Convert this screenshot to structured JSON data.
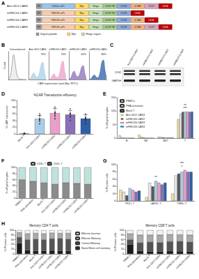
{
  "panels": {
    "A": {
      "panel": "A",
      "constructs": [
        {
          "name": "Anti-GD2-CAR4",
          "domains": [
            {
              "label": "SP",
              "color": "#9e9e9e"
            },
            {
              "label": "14G2a scFv",
              "color": "#9dc3e6"
            },
            {
              "label": "Myc",
              "color": "#ffd966"
            },
            {
              "label": "Hinge",
              "color": "#c5e0b4"
            },
            {
              "label": "CD28 TM",
              "color": "#a9d18e"
            },
            {
              "label": "CD28",
              "color": "#8faadc"
            },
            {
              "label": "4-1BB",
              "color": "#f4b183"
            },
            {
              "label": "CD27",
              "color": "#d5a6bd"
            },
            {
              "label": "CD3ζ",
              "color": "#c00000"
            }
          ]
        },
        {
          "name": "mFMC63-CAR2",
          "domains": [
            {
              "label": "SP",
              "color": "#9e9e9e"
            },
            {
              "label": "FMC63 scFv",
              "color": "#f8cbad"
            },
            {
              "label": "Myc",
              "color": "#ffd966"
            },
            {
              "label": "Hinge",
              "color": "#c5e0b4"
            },
            {
              "label": "CD28 TM",
              "color": "#a9d18e"
            },
            {
              "label": "CD28",
              "color": "#8faadc"
            },
            {
              "label": "CD3ζ",
              "color": "#c00000"
            }
          ]
        },
        {
          "name": "mFMC63-CAR3",
          "domains": [
            {
              "label": "SP",
              "color": "#9e9e9e"
            },
            {
              "label": "FMC63 scFv",
              "color": "#f8cbad"
            },
            {
              "label": "Myc",
              "color": "#ffd966"
            },
            {
              "label": "Hinge",
              "color": "#c5e0b4"
            },
            {
              "label": "CD28 TM",
              "color": "#a9d18e"
            },
            {
              "label": "CD28",
              "color": "#8faadc"
            },
            {
              "label": "4-1BB",
              "color": "#f4b183"
            },
            {
              "label": "CD3ζ",
              "color": "#c00000"
            }
          ]
        },
        {
          "name": "mFMC63-CAR4",
          "domains": [
            {
              "label": "SP",
              "color": "#9e9e9e"
            },
            {
              "label": "FMC63 scFv",
              "color": "#f8cbad"
            },
            {
              "label": "Myc",
              "color": "#ffd966"
            },
            {
              "label": "Hinge",
              "color": "#c5e0b4"
            },
            {
              "label": "CD28 TM",
              "color": "#a9d18e"
            },
            {
              "label": "CD28",
              "color": "#8faadc"
            },
            {
              "label": "4-1BB",
              "color": "#f4b183"
            },
            {
              "label": "CD27",
              "color": "#d5a6bd"
            },
            {
              "label": "CD3ζ",
              "color": "#c00000"
            }
          ]
        }
      ],
      "legend": [
        {
          "label": "Signal peptide",
          "color": "#9e9e9e"
        },
        {
          "label": "Myc",
          "color": "#ffd966"
        },
        {
          "label": "Hinge region",
          "color": "#c5e0b4"
        }
      ]
    },
    "C": {
      "panel": "C",
      "lanes": [
        "Anti-GD2-CAR4",
        "mFMC63-CAR2",
        "mFMC63-CAR3",
        "mFMC63-CAR4"
      ],
      "rows": [
        "CD3ζ",
        "GAPDH"
      ]
    }
  },
  "chart_data": [
    {
      "panel": "B",
      "type": "histogram",
      "xlabel": "CAR expression (anti-Myc FITC)",
      "ylabel": "Count",
      "tick_labels": false,
      "bins": [
        0,
        1,
        2,
        3,
        4,
        5,
        6,
        7,
        8,
        9,
        10,
        11,
        12
      ],
      "xlim": [
        0,
        12
      ],
      "ylim": [
        0,
        100
      ],
      "series": [
        {
          "name": "Untransduced",
          "color": "#8c8c8c",
          "values": [
            3,
            15,
            55,
            90,
            60,
            22,
            6,
            2,
            1,
            0,
            0,
            0
          ]
        },
        {
          "name": "Anti-GD2-CAR4",
          "color": "#a9cde8",
          "values": [
            1,
            6,
            18,
            24,
            14,
            8,
            12,
            30,
            55,
            62,
            28,
            6
          ],
          "annotation": "70%"
        },
        {
          "name": "mFMC63-CAR2",
          "color": "#e8a0c8",
          "values": [
            1,
            5,
            15,
            20,
            12,
            7,
            10,
            28,
            58,
            66,
            30,
            7
          ],
          "annotation": "74%"
        },
        {
          "name": "mFMC63-CAR3",
          "color": "#8a6fb8",
          "values": [
            2,
            8,
            24,
            30,
            18,
            10,
            12,
            26,
            45,
            50,
            24,
            5
          ],
          "annotation": "62%"
        },
        {
          "name": "mFMC63-CAR4",
          "color": "#2e5fa8",
          "values": [
            1,
            4,
            12,
            16,
            10,
            6,
            10,
            30,
            62,
            70,
            34,
            8
          ],
          "annotation": "80%"
        }
      ]
    },
    {
      "panel": "D",
      "type": "bar",
      "title": "%CAR Transduction efficiency",
      "ylabel": "% CAR expression",
      "categories": [
        "Mock T",
        "Anti-GD2-CAR4",
        "mFMC63-CAR2",
        "mFMC63-CAR3",
        "mFMC63-CAR4"
      ],
      "values": [
        1,
        45,
        62,
        58,
        46
      ],
      "errors": [
        1,
        10,
        14,
        12,
        11
      ],
      "points": [
        [
          0,
          1,
          2,
          0,
          1
        ],
        [
          30,
          38,
          45,
          55,
          60,
          42
        ],
        [
          45,
          55,
          80,
          65,
          62,
          64
        ],
        [
          40,
          52,
          75,
          62,
          60,
          59
        ],
        [
          30,
          42,
          60,
          50,
          48,
          46
        ]
      ],
      "colors": [
        "#d9d9d9",
        "#a9cde8",
        "#e8a0c8",
        "#8a6fb8",
        "#2e5fa8"
      ],
      "ylim": [
        0,
        100
      ],
      "yticks": [
        0,
        20,
        40,
        60,
        80,
        100
      ],
      "grid": false
    },
    {
      "panel": "E",
      "type": "bar",
      "ylabel": "% of Lymphocytes",
      "categories": [
        "B",
        "NK",
        "NKT",
        "T"
      ],
      "series": [
        {
          "name": "PBMCs",
          "color": "#f2e2a0",
          "values": [
            10,
            12,
            5,
            70
          ]
        },
        {
          "name": "PHA activation",
          "color": "#e6e6e6",
          "values": [
            3,
            5,
            4,
            90
          ]
        },
        {
          "name": "Mock T",
          "color": "#5a5a5a",
          "values": [
            1,
            2,
            3,
            97
          ]
        },
        {
          "name": "Anti-GD2-CAR4",
          "color": "#a9cde8",
          "values": [
            1,
            1,
            2,
            98
          ]
        },
        {
          "name": "mFMC63-CAR2",
          "color": "#e8a0c8",
          "values": [
            1,
            1,
            2,
            98
          ]
        },
        {
          "name": "mFMC63-CAR3",
          "color": "#8a6fb8",
          "values": [
            1,
            1,
            2,
            97
          ]
        },
        {
          "name": "mFMC63-CAR4",
          "color": "#2e5fa8",
          "values": [
            1,
            1,
            2,
            98
          ]
        }
      ],
      "ylim": [
        0,
        150
      ],
      "yticks": [
        0,
        50,
        100,
        150
      ],
      "legend": "upper left",
      "grid": false,
      "annotations": [
        {
          "text": "***",
          "category": "T"
        },
        {
          "text": "**",
          "category": "T"
        }
      ]
    },
    {
      "panel": "F",
      "type": "bar",
      "stacked": true,
      "ylabel": "% of Lymphocytes",
      "categories": [
        "PBMCs",
        "PHA activation",
        "Mock T",
        "Anti-GD2-CAR4",
        "mFMC63-CAR2",
        "mFMC63-CAR3",
        "mFMC63-CAR4"
      ],
      "series": [
        {
          "name": "CD4+ T",
          "color": "#8c8c8c",
          "values": [
            60,
            55,
            50,
            45,
            50,
            48,
            45
          ]
        },
        {
          "name": "CD8+ T",
          "color": "#bfe3dc",
          "values": [
            40,
            45,
            50,
            55,
            50,
            52,
            55
          ]
        }
      ],
      "ylim": [
        0,
        100
      ],
      "yticks": [
        0,
        20,
        40,
        60,
        80,
        100
      ],
      "legend": "top",
      "grid": false
    },
    {
      "panel": "G",
      "type": "bar",
      "ylabel": "% Positive cells",
      "categories": [
        "PD1+ T",
        "LAG3+ T",
        "TIM3+ T"
      ],
      "series": [
        {
          "name": "PBMCs",
          "color": "#f2e2a0",
          "values": [
            30,
            10,
            20
          ]
        },
        {
          "name": "PHA activation",
          "color": "#e6e6e6",
          "values": [
            25,
            50,
            70
          ]
        },
        {
          "name": "Mock T",
          "color": "#5a5a5a",
          "values": [
            15,
            40,
            75
          ]
        },
        {
          "name": "Anti-GD2-CAR4",
          "color": "#a9cde8",
          "values": [
            35,
            55,
            80
          ]
        },
        {
          "name": "mFMC63-CAR2",
          "color": "#e8a0c8",
          "values": [
            30,
            50,
            85
          ]
        },
        {
          "name": "mFMC63-CAR3",
          "color": "#8a6fb8",
          "values": [
            25,
            45,
            80
          ]
        },
        {
          "name": "mFMC63-CAR4",
          "color": "#2e5fa8",
          "values": [
            28,
            50,
            80
          ]
        }
      ],
      "ylim": [
        0,
        100
      ],
      "yticks": [
        0,
        20,
        40,
        60,
        80,
        100
      ],
      "grid": false,
      "annotations": [
        {
          "text": "**",
          "category": "LAG3+ T"
        },
        {
          "text": "*",
          "category": "TIM3+ T"
        },
        {
          "text": "***",
          "category": "TIM3+ T"
        }
      ]
    },
    {
      "panel": "H",
      "type": "bar",
      "stacked": true,
      "title": "Memory CD4 T cells",
      "ylabel": "% Positive cells",
      "categories": [
        "PBMCs",
        "PHA activation",
        "Mock T",
        "Anti-GD2-CAR4",
        "mFMC63-CAR2",
        "mFMC63-CAR3",
        "mFMC63-CAR4"
      ],
      "series": [
        {
          "name": "Naive/Stem cell memory",
          "color": "#1a1a1a",
          "values": [
            45,
            15,
            12,
            12,
            14,
            13,
            12
          ]
        },
        {
          "name": "Central Memory",
          "color": "#555555",
          "values": [
            25,
            45,
            50,
            48,
            50,
            52,
            50
          ]
        },
        {
          "name": "Effector Memory",
          "color": "#aaaaaa",
          "values": [
            20,
            25,
            25,
            25,
            24,
            22,
            25
          ]
        },
        {
          "name": "Effector function",
          "color": "#f2f2f2",
          "values": [
            10,
            15,
            13,
            15,
            12,
            13,
            13
          ]
        }
      ],
      "ylim": [
        0,
        100
      ],
      "yticks": [
        0,
        20,
        40,
        60,
        80,
        100
      ],
      "legend": "right",
      "grid": false
    },
    {
      "panel": "H",
      "type": "bar",
      "stacked": true,
      "title": "Memory CD8 T cells",
      "ylabel": "% Positive cells",
      "categories": [
        "PBMCs",
        "PHA activation",
        "Mock T",
        "Anti-GD2-CAR4",
        "mFMC63-CAR2",
        "mFMC63-CAR3",
        "mFMC63-CAR4"
      ],
      "series": [
        {
          "name": "Naive/Stem cell memory",
          "color": "#1a1a1a",
          "values": [
            40,
            12,
            10,
            10,
            12,
            11,
            10
          ]
        },
        {
          "name": "Central Memory",
          "color": "#555555",
          "values": [
            20,
            35,
            40,
            38,
            40,
            42,
            40
          ]
        },
        {
          "name": "Effector Memory",
          "color": "#aaaaaa",
          "values": [
            25,
            33,
            30,
            32,
            30,
            28,
            30
          ]
        },
        {
          "name": "Effector function",
          "color": "#f2f2f2",
          "values": [
            15,
            20,
            20,
            20,
            18,
            19,
            20
          ]
        }
      ],
      "ylim": [
        0,
        100
      ],
      "yticks": [
        0,
        20,
        40,
        60,
        80,
        100
      ],
      "grid": false
    }
  ]
}
